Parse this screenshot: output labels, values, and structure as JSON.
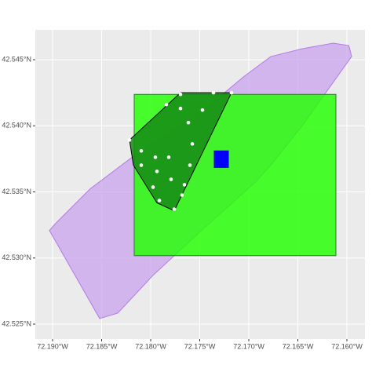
{
  "chart_data": {
    "type": "map",
    "xlim": [
      -72.19176,
      -72.15816
    ],
    "ylim": [
      42.52387,
      42.54726
    ],
    "xticks": [
      {
        "value": -72.19,
        "label": "72.190°W"
      },
      {
        "value": -72.185,
        "label": "72.185°W"
      },
      {
        "value": -72.18,
        "label": "72.180°W"
      },
      {
        "value": -72.175,
        "label": "72.175°W"
      },
      {
        "value": -72.17,
        "label": "72.170°W"
      },
      {
        "value": -72.165,
        "label": "72.165°W"
      },
      {
        "value": -72.16,
        "label": "72.160°W"
      }
    ],
    "yticks": [
      {
        "value": 42.525,
        "label": "42.525°N"
      },
      {
        "value": 42.53,
        "label": "42.530°N"
      },
      {
        "value": 42.535,
        "label": "42.535°N"
      },
      {
        "value": 42.54,
        "label": "42.540°N"
      },
      {
        "value": 42.545,
        "label": "42.545°N"
      }
    ],
    "grid": true,
    "layers": [
      {
        "type": "polygon",
        "color": "#b07ae8",
        "fill": "#c9a3ee",
        "opacity": 0.75,
        "lon": [
          -72.19032,
          -72.1852,
          -72.18336,
          -72.17976,
          -72.17456,
          -72.16936,
          -72.16776,
          -72.16456,
          -72.15952,
          -72.1598,
          -72.1614,
          -72.16456,
          -72.16776,
          -72.17056,
          -72.17536,
          -72.18136,
          -72.18616,
          -72.18976
        ],
        "lat": [
          42.53208,
          42.52542,
          42.52583,
          42.52869,
          42.53226,
          42.53571,
          42.53702,
          42.54,
          42.54524,
          42.54607,
          42.54625,
          42.54583,
          42.54524,
          42.54369,
          42.54071,
          42.53792,
          42.53524,
          42.53256
        ]
      },
      {
        "type": "polygon",
        "color": "#2a7a2a",
        "fill": "#22ff00",
        "opacity": 0.82,
        "lon": [
          -72.18168,
          -72.16112,
          -72.16112,
          -72.18168
        ],
        "lat": [
          42.54238,
          42.54238,
          42.53018,
          42.53018
        ]
      },
      {
        "type": "polygon",
        "color": "#000000",
        "fill": "#158a15",
        "opacity": 0.85,
        "lon": [
          -72.18216,
          -72.17696,
          -72.17176,
          -72.1776,
          -72.17936,
          -72.18176
        ],
        "lat": [
          42.53893,
          42.5425,
          42.5425,
          42.53357,
          42.53417,
          42.53702
        ]
      },
      {
        "type": "polygon",
        "color": "#0000cc",
        "fill": "#0000ff",
        "opacity": 1,
        "lon": [
          -72.17352,
          -72.17208,
          -72.17208,
          -72.17352
        ],
        "lat": [
          42.5381,
          42.5381,
          42.53685,
          42.53685
        ]
      }
    ],
    "points": {
      "color": "#ffffff",
      "lon": [
        -72.1784,
        -72.17696,
        -72.1736,
        -72.17176,
        -72.17696,
        -72.17472,
        -72.17616,
        -72.18216,
        -72.18096,
        -72.17952,
        -72.17816,
        -72.17576,
        -72.18096,
        -72.176,
        -72.17936,
        -72.17792,
        -72.17976,
        -72.17656,
        -72.1768,
        -72.17912,
        -72.1776
      ],
      "lat": [
        42.54161,
        42.54238,
        42.5425,
        42.5425,
        42.54131,
        42.54119,
        42.54024,
        42.53893,
        42.5381,
        42.53762,
        42.53762,
        42.53863,
        42.53702,
        42.53702,
        42.53655,
        42.53595,
        42.53536,
        42.53554,
        42.53476,
        42.53435,
        42.53369
      ]
    }
  }
}
